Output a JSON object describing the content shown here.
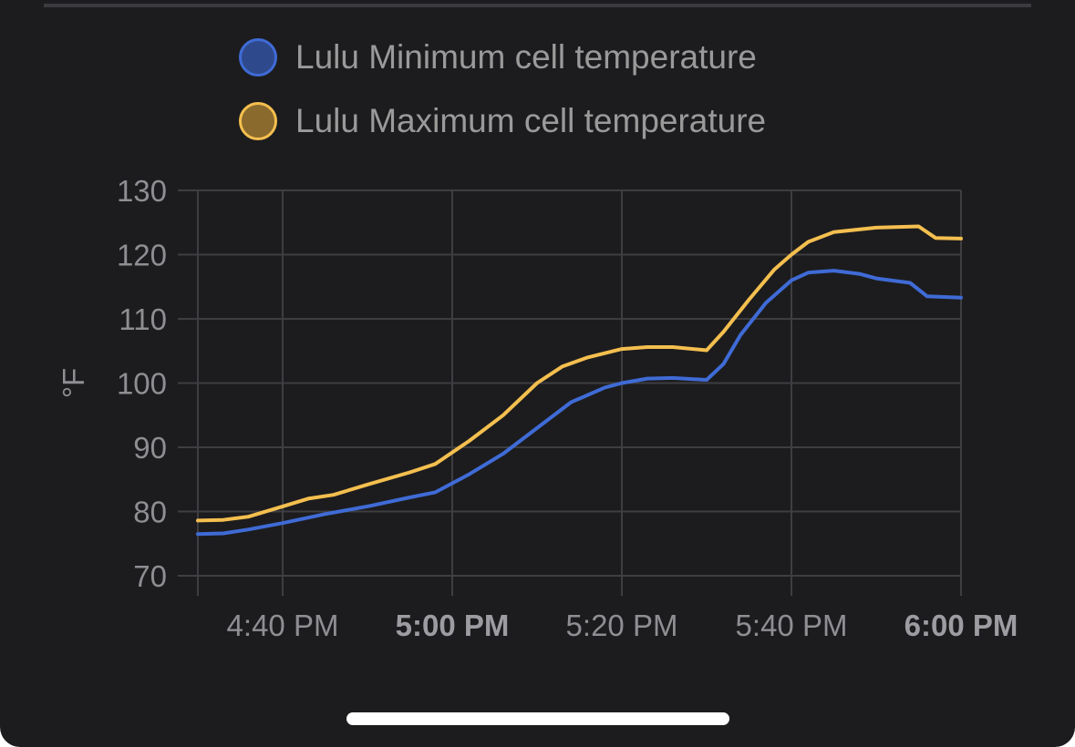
{
  "colors": {
    "background": "#1c1c1e",
    "grid": "#3e3e42",
    "axis_text": "#8e8e93",
    "min_series": "#3f6bd6",
    "max_series": "#f4bf4f"
  },
  "chart_data": {
    "type": "line",
    "ylabel": "°F",
    "xlabel": "",
    "ylim": [
      70,
      130
    ],
    "yticks": [
      70,
      80,
      90,
      100,
      110,
      120,
      130
    ],
    "x_range": [
      "4:30 PM",
      "6:00 PM"
    ],
    "xticks": [
      {
        "label": "4:40 PM",
        "minutes": 10,
        "bold": false
      },
      {
        "label": "5:00 PM",
        "minutes": 30,
        "bold": true
      },
      {
        "label": "5:20 PM",
        "minutes": 50,
        "bold": false
      },
      {
        "label": "5:40 PM",
        "minutes": 70,
        "bold": false
      },
      {
        "label": "6:00 PM",
        "minutes": 90,
        "bold": true
      }
    ],
    "grid": true,
    "legend_position": "top",
    "series": [
      {
        "name": "Lulu Minimum cell temperature",
        "color": "#3f6bd6",
        "fill": "#2f4a8c",
        "x": [
          0,
          3,
          6,
          10,
          15,
          20,
          25,
          28,
          32,
          36,
          40,
          44,
          48,
          50,
          53,
          56,
          60,
          62,
          64,
          67,
          70,
          72,
          75,
          78,
          80,
          84,
          86,
          90
        ],
        "y": [
          76.5,
          76.6,
          77.2,
          78.2,
          79.6,
          80.8,
          82.2,
          83.0,
          85.8,
          89.0,
          93.0,
          97.0,
          99.3,
          100.0,
          100.7,
          100.8,
          100.5,
          103.0,
          107.5,
          112.5,
          116.0,
          117.2,
          117.5,
          117.0,
          116.3,
          115.6,
          113.5,
          113.3
        ]
      },
      {
        "name": "Lulu Maximum cell temperature",
        "color": "#f4bf4f",
        "fill": "#8a6a2d",
        "x": [
          0,
          3,
          6,
          10,
          13,
          16,
          20,
          25,
          28,
          32,
          36,
          40,
          43,
          46,
          50,
          53,
          56,
          60,
          62,
          65,
          68,
          70,
          72,
          75,
          80,
          85,
          87,
          90
        ],
        "y": [
          78.6,
          78.7,
          79.2,
          80.8,
          82.0,
          82.6,
          84.2,
          86.1,
          87.4,
          91.0,
          95.0,
          100.0,
          102.6,
          104.0,
          105.3,
          105.6,
          105.6,
          105.1,
          108.0,
          113.0,
          117.7,
          120.0,
          122.0,
          123.5,
          124.2,
          124.4,
          122.6,
          122.5
        ]
      }
    ]
  }
}
